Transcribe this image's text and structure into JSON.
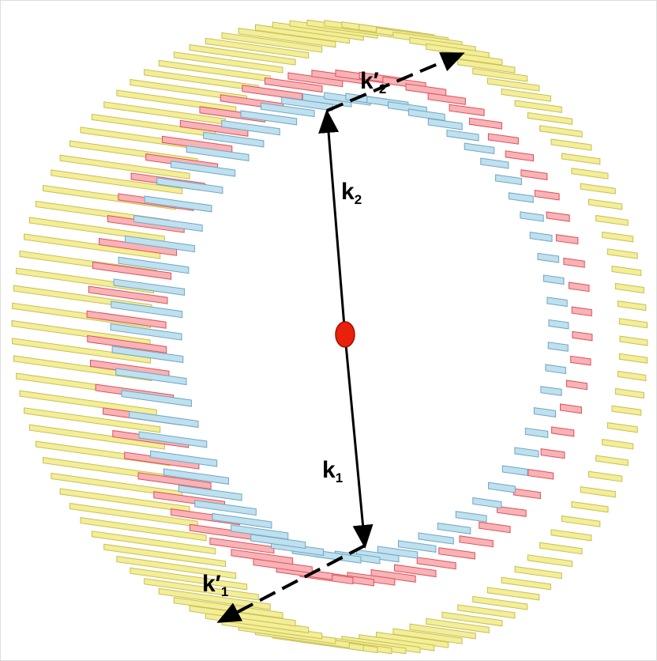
{
  "labels": [
    {
      "symbol": "k′",
      "subscript": "2"
    },
    {
      "symbol": "k",
      "subscript": "2"
    },
    {
      "symbol": "k",
      "subscript": "1"
    },
    {
      "symbol": "k′",
      "subscript": "1"
    }
  ]
}
